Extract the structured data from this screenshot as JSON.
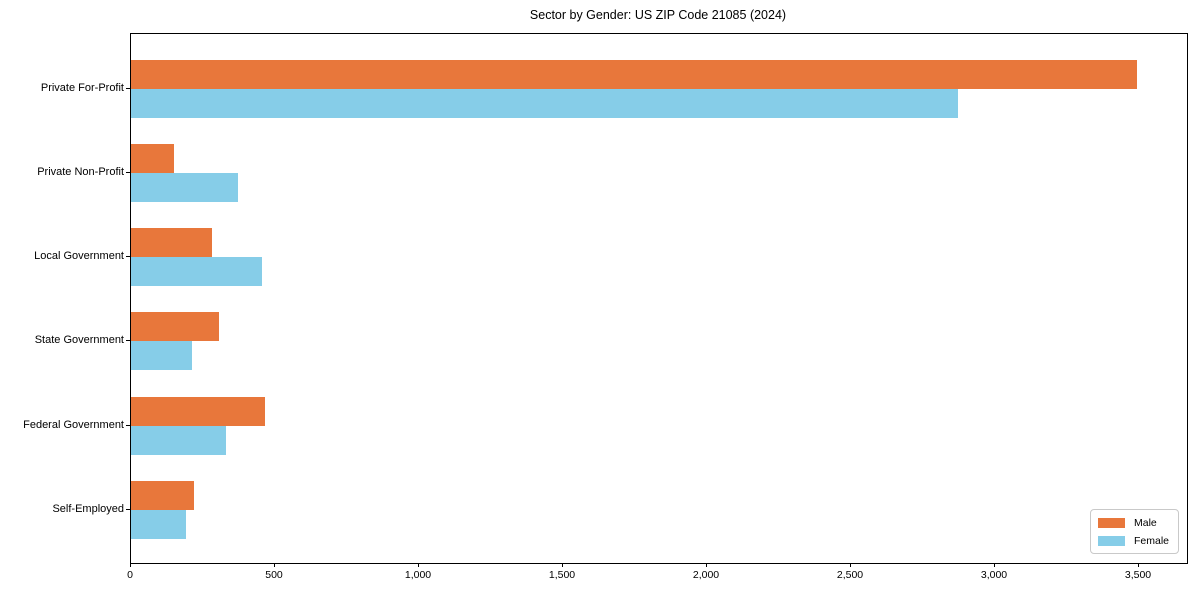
{
  "title": "Sector by Gender: US ZIP Code 21085 (2024)",
  "chart_data": {
    "type": "bar",
    "orientation": "horizontal",
    "title": "Sector by Gender: US ZIP Code 21085 (2024)",
    "xlabel": "",
    "ylabel": "",
    "categories": [
      "Private For-Profit",
      "Private Non-Profit",
      "Local Government",
      "State Government",
      "Federal Government",
      "Self-Employed"
    ],
    "series": [
      {
        "name": "Male",
        "color": "#e8773b",
        "values": [
          3490,
          150,
          280,
          305,
          465,
          220
        ]
      },
      {
        "name": "Female",
        "color": "#86cde8",
        "values": [
          2870,
          370,
          455,
          210,
          330,
          190
        ]
      }
    ],
    "xlim": [
      0,
      3665
    ],
    "xticks": [
      0,
      500,
      1000,
      1500,
      2000,
      2500,
      3000,
      3500
    ],
    "xtick_labels": [
      "0",
      "500",
      "1,000",
      "1,500",
      "2,000",
      "2,500",
      "3,000",
      "3,500"
    ],
    "grid": false,
    "legend_position": "lower right",
    "colors": {
      "male": "#e8773b",
      "female": "#86cde8",
      "axis": "#000000",
      "background": "#ffffff"
    }
  }
}
